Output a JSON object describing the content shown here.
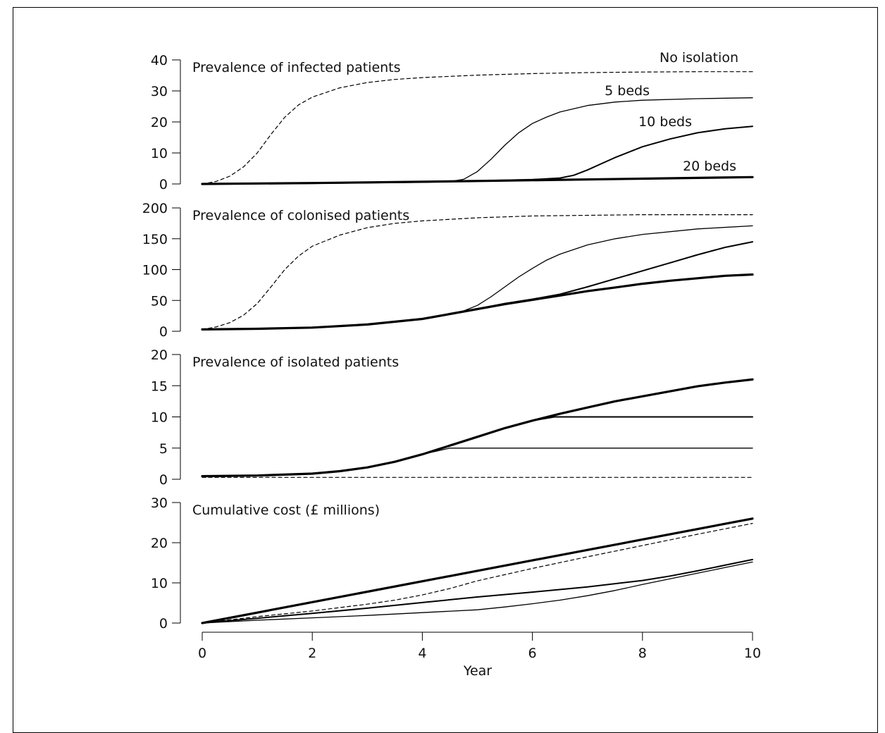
{
  "chart_data": {
    "type": "line",
    "xlabel": "Year",
    "xlim": [
      0,
      10
    ],
    "xticks": [
      0,
      2,
      4,
      6,
      8,
      10
    ],
    "grid": false,
    "panels": [
      {
        "title": "Prevalence of infected patients",
        "ylim": [
          0,
          40
        ],
        "yticks": [
          0,
          10,
          20,
          30,
          40
        ],
        "series": [
          {
            "name": "No isolation",
            "style": "dashed",
            "x": [
              0,
              0.25,
              0.5,
              0.75,
              1,
              1.25,
              1.5,
              1.75,
              2,
              2.5,
              3,
              3.5,
              4,
              5,
              6,
              7,
              8,
              9,
              10
            ],
            "y": [
              0,
              0.8,
              2.5,
              5.5,
              10,
              16,
              21.5,
              25.5,
              28,
              31,
              32.7,
              33.7,
              34.3,
              35.1,
              35.6,
              35.9,
              36.1,
              36.2,
              36.2
            ]
          },
          {
            "name": "5 beds",
            "style": "thin",
            "x": [
              0,
              1,
              2,
              3,
              4,
              4.5,
              4.75,
              5,
              5.25,
              5.5,
              5.75,
              6,
              6.25,
              6.5,
              7,
              7.5,
              8,
              9,
              10
            ],
            "y": [
              0,
              0.1,
              0.2,
              0.4,
              0.6,
              0.8,
              1.5,
              4,
              8,
              12.5,
              16.5,
              19.5,
              21.5,
              23.2,
              25.3,
              26.4,
              27,
              27.5,
              27.8
            ]
          },
          {
            "name": "10 beds",
            "style": "medium",
            "x": [
              0,
              2,
              4,
              5,
              6,
              6.5,
              6.75,
              7,
              7.25,
              7.5,
              8,
              8.5,
              9,
              9.5,
              10
            ],
            "y": [
              0,
              0.2,
              0.6,
              1,
              1.4,
              1.9,
              2.8,
              4.5,
              6.5,
              8.5,
              12,
              14.5,
              16.5,
              17.8,
              18.6
            ]
          },
          {
            "name": "20 beds",
            "style": "thick",
            "x": [
              0,
              2,
              4,
              6,
              8,
              10
            ],
            "y": [
              0,
              0.3,
              0.7,
              1.2,
              1.7,
              2.2
            ]
          }
        ]
      },
      {
        "title": "Prevalence of colonised patients",
        "ylim": [
          0,
          200
        ],
        "yticks": [
          0,
          50,
          100,
          150,
          200
        ],
        "series": [
          {
            "name": "No isolation",
            "style": "dashed",
            "x": [
              0,
              0.25,
              0.5,
              0.75,
              1,
              1.25,
              1.5,
              1.75,
              2,
              2.5,
              3,
              3.5,
              4,
              5,
              6,
              7,
              8,
              9,
              10
            ],
            "y": [
              3,
              7,
              14,
              26,
              45,
              72,
              100,
              122,
              138,
              156,
              168,
              175,
              179,
              184,
              187,
              188,
              189,
              189,
              189
            ]
          },
          {
            "name": "5 beds",
            "style": "thin",
            "x": [
              0,
              1,
              2,
              3,
              4,
              4.5,
              4.75,
              5,
              5.25,
              5.5,
              5.75,
              6,
              6.25,
              6.5,
              7,
              7.5,
              8,
              9,
              10
            ],
            "y": [
              3,
              4,
              6,
              11,
              20,
              28,
              33,
              42,
              56,
              72,
              88,
              102,
              115,
              125,
              140,
              150,
              157,
              166,
              171
            ]
          },
          {
            "name": "10 beds",
            "style": "medium",
            "x": [
              0,
              1,
              2,
              3,
              4,
              4.5,
              5,
              5.5,
              6,
              6.5,
              7,
              7.5,
              8,
              8.5,
              9,
              9.5,
              10
            ],
            "y": [
              3,
              4,
              6,
              11,
              20,
              28,
              36,
              45,
              52,
              60,
              72,
              85,
              98,
              111,
              124,
              136,
              145
            ]
          },
          {
            "name": "20 beds",
            "style": "thick",
            "x": [
              0,
              1,
              2,
              3,
              4,
              4.5,
              5,
              5.5,
              6,
              6.5,
              7,
              7.5,
              8,
              8.5,
              9,
              9.5,
              10
            ],
            "y": [
              3,
              4,
              6,
              11,
              20,
              28,
              36,
              44,
              51,
              58,
              65,
              71,
              77,
              82,
              86,
              90,
              92
            ]
          }
        ]
      },
      {
        "title": "Prevalence of isolated patients",
        "ylim": [
          0,
          20
        ],
        "yticks": [
          0,
          5,
          10,
          15,
          20
        ],
        "series": [
          {
            "name": "No isolation",
            "style": "dashed",
            "x": [
              0,
              10
            ],
            "y": [
              0.3,
              0.3
            ]
          },
          {
            "name": "5 beds",
            "style": "thin",
            "x": [
              0,
              1,
              2,
              2.5,
              3,
              3.5,
              4,
              4.5,
              4.65,
              10
            ],
            "y": [
              0.5,
              0.6,
              0.9,
              1.3,
              1.9,
              2.8,
              4,
              5,
              5,
              5
            ]
          },
          {
            "name": "10 beds",
            "style": "medium",
            "x": [
              0,
              1,
              2,
              2.5,
              3,
              3.5,
              4,
              4.5,
              5,
              5.5,
              6,
              6.4,
              10
            ],
            "y": [
              0.5,
              0.6,
              0.9,
              1.3,
              1.9,
              2.8,
              4,
              5.4,
              6.8,
              8.2,
              9.4,
              10,
              10
            ]
          },
          {
            "name": "20 beds",
            "style": "thick",
            "x": [
              0,
              1,
              2,
              2.5,
              3,
              3.5,
              4,
              4.5,
              5,
              5.5,
              6,
              6.5,
              7,
              7.5,
              8,
              8.5,
              9,
              9.5,
              10
            ],
            "y": [
              0.5,
              0.6,
              0.9,
              1.3,
              1.9,
              2.8,
              4,
              5.4,
              6.8,
              8.2,
              9.4,
              10.5,
              11.5,
              12.5,
              13.3,
              14.1,
              14.9,
              15.5,
              16
            ]
          }
        ]
      },
      {
        "title": "Cumulative cost (£ millions)",
        "ylim": [
          0,
          30
        ],
        "yticks": [
          0,
          10,
          20,
          30
        ],
        "series": [
          {
            "name": "No isolation",
            "style": "dashed",
            "x": [
              0,
              1,
              2,
              3,
              3.5,
              4,
              4.5,
              5,
              6,
              7,
              8,
              9,
              10
            ],
            "y": [
              0,
              1.6,
              3,
              4.7,
              5.7,
              7,
              8.6,
              10.5,
              13.6,
              16.5,
              19.3,
              22.1,
              24.8
            ]
          },
          {
            "name": "5 beds",
            "style": "thin",
            "x": [
              0,
              1,
              2,
              3,
              4,
              5,
              5.5,
              6,
              6.5,
              7,
              7.5,
              8,
              8.5,
              9,
              9.5,
              10
            ],
            "y": [
              0,
              0.7,
              1.3,
              1.9,
              2.6,
              3.3,
              4,
              4.8,
              5.7,
              6.8,
              8.1,
              9.6,
              11,
              12.4,
              13.8,
              15.2
            ]
          },
          {
            "name": "10 beds",
            "style": "medium",
            "x": [
              0,
              1,
              2,
              3,
              4,
              5,
              6,
              7,
              8,
              8.5,
              9,
              9.5,
              10
            ],
            "y": [
              0,
              1.2,
              2.4,
              3.7,
              5.1,
              6.5,
              7.7,
              9,
              10.6,
              11.7,
              13,
              14.4,
              15.8
            ]
          },
          {
            "name": "20 beds",
            "style": "thick",
            "x": [
              0,
              10
            ],
            "y": [
              0,
              26
            ]
          }
        ]
      }
    ],
    "annotations": [
      {
        "text": "No isolation",
        "panel": 0
      },
      {
        "text": "5 beds",
        "panel": 0
      },
      {
        "text": "10 beds",
        "panel": 0
      },
      {
        "text": "20 beds",
        "panel": 0
      }
    ]
  }
}
